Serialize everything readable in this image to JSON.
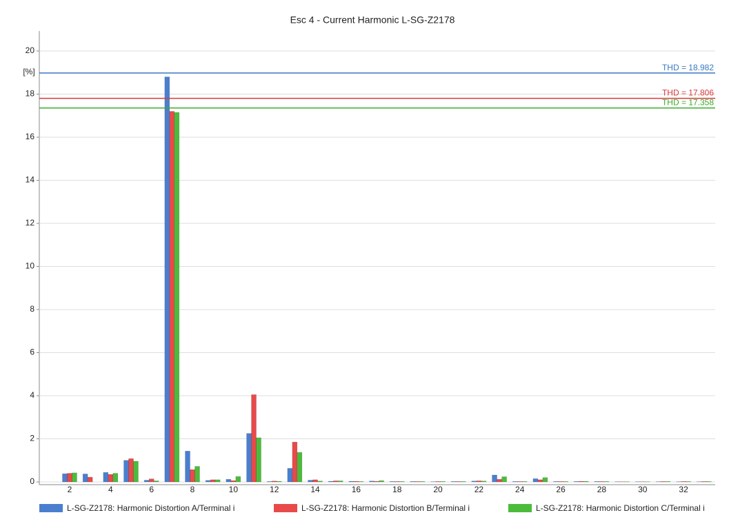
{
  "chart_data": {
    "type": "bar",
    "title": "Esc 4 - Current Harmonic L-SG-Z2178",
    "y_label": "[%]",
    "categories": [
      "2",
      null,
      "4",
      null,
      "6",
      null,
      "8",
      null,
      "10",
      null,
      "12",
      null,
      "14",
      null,
      "16",
      null,
      "18",
      null,
      "20",
      null,
      "22",
      null,
      "24",
      null,
      "26",
      null,
      "28",
      null,
      "30",
      null,
      "32",
      null
    ],
    "series": [
      {
        "name": "L-SG-Z2178: Harmonic Distortion A/Terminal i",
        "color": "#4a7fd0",
        "values": [
          0.38,
          0.37,
          0.44,
          1.0,
          0.08,
          18.8,
          1.43,
          0.07,
          0.12,
          2.25,
          0.02,
          0.63,
          0.08,
          0.03,
          0.03,
          0.04,
          0.02,
          0.02,
          0.01,
          0.02,
          0.04,
          0.32,
          0.02,
          0.15,
          0.02,
          0.02,
          0.02,
          0.01,
          0.01,
          0.01,
          0.01,
          0.01
        ]
      },
      {
        "name": "L-SG-Z2178: Harmonic Distortion B/Terminal i",
        "color": "#e84a4a",
        "values": [
          0.4,
          0.22,
          0.35,
          1.08,
          0.14,
          17.2,
          0.57,
          0.1,
          0.06,
          4.05,
          0.04,
          1.85,
          0.1,
          0.05,
          0.03,
          0.03,
          0.02,
          0.02,
          0.02,
          0.02,
          0.05,
          0.12,
          0.02,
          0.1,
          0.02,
          0.03,
          0.02,
          0.01,
          0.01,
          0.02,
          0.02,
          0.02
        ]
      },
      {
        "name": "L-SG-Z2178: Harmonic Distortion C/Terminal i",
        "color": "#4cbb3c",
        "values": [
          0.42,
          0.0,
          0.4,
          0.96,
          0.05,
          17.15,
          0.72,
          0.1,
          0.25,
          2.05,
          0.03,
          1.37,
          0.04,
          0.05,
          0.02,
          0.06,
          0.02,
          0.02,
          0.02,
          0.02,
          0.04,
          0.24,
          0.02,
          0.2,
          0.02,
          0.03,
          0.02,
          0.01,
          0.01,
          0.02,
          0.02,
          0.02
        ]
      }
    ],
    "annotations": [
      {
        "label": "THD = 18.982",
        "value": 18.982,
        "color": "#3a78c0"
      },
      {
        "label": "THD = 17.806",
        "value": 17.806,
        "color": "#d83a3a"
      },
      {
        "label": "THD = 17.358",
        "value": 17.358,
        "color": "#3aaa2a"
      }
    ],
    "ylim": [
      0,
      20
    ],
    "yticks": [
      0,
      2,
      4,
      6,
      8,
      10,
      12,
      14,
      16,
      18,
      20
    ],
    "grid": true
  }
}
